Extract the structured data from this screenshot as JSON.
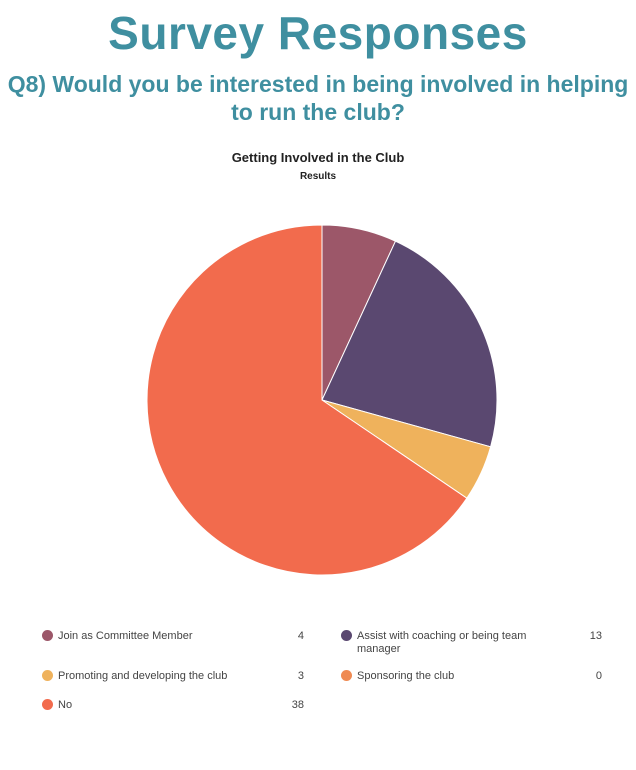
{
  "header": {
    "title": "Survey Responses",
    "question": "Q8) Would you be interested in being involved in helping to run the club?"
  },
  "chart_data": {
    "type": "pie",
    "title": "Getting Involved in the Club",
    "subtitle": "Results",
    "legend_placement": "bottom",
    "categories": [
      "Join as Committee Member",
      "Assist with coaching or being team manager",
      "Promoting and developing the club",
      "Sponsoring the club",
      "No"
    ],
    "values": [
      4,
      13,
      3,
      0,
      38
    ],
    "colors": [
      "#9c5769",
      "#5a4870",
      "#efb25c",
      "#ef8a52",
      "#f26b4d"
    ],
    "value_labels": [
      "4",
      "13",
      "3",
      "0",
      "38"
    ]
  }
}
